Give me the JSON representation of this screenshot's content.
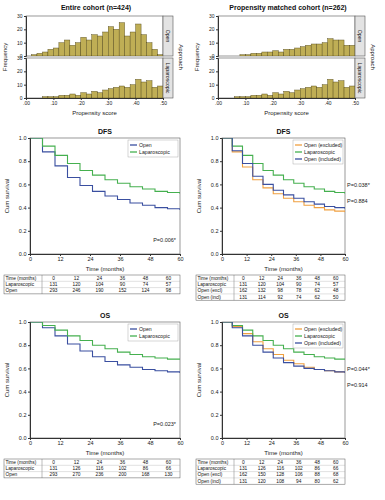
{
  "chart_data": [
    {
      "type": "histogram",
      "title": "Entire cohort (n=424)",
      "x_label": "Propensity score",
      "y_label": "Frequency",
      "facet_title": "Approach",
      "bins": [
        0,
        0.02,
        0.04,
        0.06,
        0.08,
        0.1,
        0.12,
        0.14,
        0.16,
        0.18,
        0.2,
        0.22,
        0.24,
        0.26,
        0.28,
        0.3,
        0.32,
        0.34,
        0.36,
        0.38,
        0.4,
        0.42,
        0.44,
        0.46,
        0.48,
        0.5
      ],
      "xlim": [
        0,
        0.5
      ],
      "xticks": [
        {
          "value": 0,
          "label": ".00"
        },
        {
          "value": 0.1,
          "label": ".10"
        },
        {
          "value": 0.2,
          "label": ".20"
        },
        {
          "value": 0.3,
          "label": ".30"
        },
        {
          "value": 0.4,
          "label": ".40"
        },
        {
          "value": 0.5,
          "label": ".50"
        }
      ],
      "ylim": [
        0,
        30
      ],
      "yticks": [
        0,
        10,
        20,
        30
      ],
      "color": "#bfae55",
      "series": [
        {
          "name": "Open",
          "values": [
            0,
            1,
            2,
            3,
            5,
            6,
            10,
            12,
            8,
            10,
            14,
            12,
            16,
            15,
            18,
            22,
            20,
            25,
            15,
            18,
            24,
            16,
            10,
            5,
            1
          ]
        },
        {
          "name": "Laparoscopic",
          "values": [
            0,
            0,
            0,
            1,
            1,
            1,
            2,
            2,
            3,
            2,
            4,
            3,
            5,
            4,
            6,
            7,
            8,
            9,
            8,
            10,
            14,
            12,
            13,
            8,
            9
          ]
        }
      ]
    },
    {
      "type": "histogram",
      "title": "Propensity matched cohort (n=262)",
      "x_label": "Propensity score",
      "y_label": "Frequency",
      "facet_title": "Approach",
      "bins": [
        0,
        0.02,
        0.04,
        0.06,
        0.08,
        0.1,
        0.12,
        0.14,
        0.16,
        0.18,
        0.2,
        0.22,
        0.24,
        0.26,
        0.28,
        0.3,
        0.32,
        0.34,
        0.36,
        0.38,
        0.4,
        0.42,
        0.44,
        0.46,
        0.48,
        0.5
      ],
      "xlim": [
        0,
        0.5
      ],
      "xticks": [
        {
          "value": 0,
          "label": ".00"
        },
        {
          "value": 0.1,
          "label": ".10"
        },
        {
          "value": 0.2,
          "label": ".20"
        },
        {
          "value": 0.3,
          "label": ".30"
        },
        {
          "value": 0.4,
          "label": ".40"
        },
        {
          "value": 0.5,
          "label": ".50"
        }
      ],
      "ylim": [
        0,
        30
      ],
      "yticks": [
        0,
        10,
        20,
        30
      ],
      "color": "#bfae55",
      "series": [
        {
          "name": "Open",
          "values": [
            0,
            0,
            0,
            0,
            1,
            1,
            2,
            2,
            3,
            3,
            4,
            3,
            5,
            5,
            6,
            7,
            8,
            9,
            9,
            10,
            13,
            12,
            12,
            8,
            8
          ]
        },
        {
          "name": "Laparoscopic",
          "values": [
            0,
            0,
            0,
            1,
            1,
            1,
            2,
            2,
            3,
            2,
            4,
            3,
            5,
            4,
            6,
            7,
            8,
            9,
            8,
            10,
            14,
            12,
            13,
            8,
            9
          ]
        }
      ]
    },
    {
      "type": "line",
      "title": "DFS",
      "x_label": "Time (months)",
      "y_label": "Cum survival",
      "line_style": "step",
      "legend": "upper right",
      "x": [
        0,
        5,
        10,
        15,
        20,
        25,
        30,
        35,
        40,
        45,
        50,
        55,
        60
      ],
      "xlim": [
        0,
        60
      ],
      "xticks": [
        0,
        12,
        24,
        36,
        48,
        60
      ],
      "ylim": [
        0,
        1
      ],
      "yticks": [
        {
          "value": 0,
          "label": "0.0"
        },
        {
          "value": 0.2,
          "label": "0.2"
        },
        {
          "value": 0.4,
          "label": "0.4"
        },
        {
          "value": 0.6,
          "label": "0.6"
        },
        {
          "value": 0.8,
          "label": "0.8"
        },
        {
          "value": 1,
          "label": "1.0"
        }
      ],
      "series": [
        {
          "name": "Open",
          "color": "#3a4fa0",
          "values": [
            1.0,
            0.88,
            0.76,
            0.66,
            0.59,
            0.54,
            0.5,
            0.47,
            0.44,
            0.42,
            0.4,
            0.39,
            0.38
          ]
        },
        {
          "name": "Laparoscopic",
          "color": "#45b04f",
          "values": [
            1.0,
            0.93,
            0.85,
            0.78,
            0.72,
            0.68,
            0.64,
            0.61,
            0.58,
            0.56,
            0.54,
            0.53,
            0.52
          ]
        }
      ],
      "annotations": [
        "P=0.006*"
      ],
      "risk_table": [
        [
          "Time (months)",
          0,
          12,
          24,
          36,
          48,
          60
        ],
        [
          "Laparoscopic",
          131,
          120,
          104,
          90,
          74,
          57
        ],
        [
          "Open",
          293,
          246,
          190,
          152,
          124,
          98
        ]
      ]
    },
    {
      "type": "line",
      "title": "DFS",
      "x_label": "Time (months)",
      "y_label": "Cum survival",
      "line_style": "step",
      "legend": "upper right",
      "x": [
        0,
        5,
        10,
        15,
        20,
        25,
        30,
        35,
        40,
        45,
        50,
        55,
        60
      ],
      "xlim": [
        0,
        60
      ],
      "xticks": [
        0,
        12,
        24,
        36,
        48,
        60
      ],
      "ylim": [
        0,
        1
      ],
      "yticks": [
        {
          "value": 0,
          "label": "0.0"
        },
        {
          "value": 0.2,
          "label": "0.2"
        },
        {
          "value": 0.4,
          "label": "0.4"
        },
        {
          "value": 0.6,
          "label": "0.6"
        },
        {
          "value": 0.8,
          "label": "0.8"
        },
        {
          "value": 1,
          "label": "1.0"
        }
      ],
      "series": [
        {
          "name": "Open (excluded)",
          "color": "#f0a040",
          "values": [
            1.0,
            0.88,
            0.75,
            0.64,
            0.57,
            0.52,
            0.48,
            0.45,
            0.42,
            0.4,
            0.38,
            0.37,
            0.36
          ]
        },
        {
          "name": "Laparoscopic",
          "color": "#45b04f",
          "values": [
            1.0,
            0.93,
            0.85,
            0.78,
            0.72,
            0.68,
            0.64,
            0.61,
            0.58,
            0.56,
            0.54,
            0.53,
            0.52
          ]
        },
        {
          "name": "Open (included)",
          "color": "#3a4fa0",
          "values": [
            1.0,
            0.89,
            0.78,
            0.67,
            0.6,
            0.55,
            0.51,
            0.48,
            0.45,
            0.43,
            0.41,
            0.4,
            0.39
          ]
        }
      ],
      "annotations": [
        "P=0.038*",
        "P=0.884"
      ],
      "risk_table": [
        [
          "Time (months)",
          0,
          12,
          24,
          36,
          48,
          60
        ],
        [
          "Laparoscopic",
          131,
          120,
          104,
          90,
          74,
          57
        ],
        [
          "Open (excl)",
          162,
          132,
          98,
          78,
          62,
          48
        ],
        [
          "Open (incl)",
          131,
          114,
          92,
          74,
          62,
          50
        ]
      ]
    },
    {
      "type": "line",
      "title": "OS",
      "x_label": "Time (months)",
      "y_label": "Cum survival",
      "line_style": "step",
      "legend": "upper right",
      "x": [
        0,
        5,
        10,
        15,
        20,
        25,
        30,
        35,
        40,
        45,
        50,
        55,
        60
      ],
      "xlim": [
        0,
        60
      ],
      "xticks": [
        0,
        12,
        24,
        36,
        48,
        60
      ],
      "ylim": [
        0,
        1
      ],
      "yticks": [
        {
          "value": 0,
          "label": "0.0"
        },
        {
          "value": 0.2,
          "label": "0.2"
        },
        {
          "value": 0.4,
          "label": "0.4"
        },
        {
          "value": 0.6,
          "label": "0.6"
        },
        {
          "value": 0.8,
          "label": "0.8"
        },
        {
          "value": 1,
          "label": "1.0"
        }
      ],
      "series": [
        {
          "name": "Open",
          "color": "#3a4fa0",
          "values": [
            1.0,
            0.95,
            0.88,
            0.81,
            0.75,
            0.7,
            0.66,
            0.63,
            0.61,
            0.59,
            0.58,
            0.57,
            0.56
          ]
        },
        {
          "name": "Laparoscopic",
          "color": "#45b04f",
          "values": [
            1.0,
            0.97,
            0.93,
            0.88,
            0.84,
            0.8,
            0.77,
            0.74,
            0.72,
            0.7,
            0.69,
            0.68,
            0.68
          ]
        }
      ],
      "annotations": [
        "P=0.023*"
      ],
      "risk_table": [
        [
          "Time (months)",
          0,
          12,
          24,
          36,
          48,
          60
        ],
        [
          "Laparoscopic",
          131,
          126,
          116,
          102,
          86,
          66
        ],
        [
          "Open",
          293,
          270,
          236,
          200,
          168,
          130
        ]
      ]
    },
    {
      "type": "line",
      "title": "OS",
      "x_label": "Time (months)",
      "y_label": "Cum survival",
      "line_style": "step",
      "legend": "upper right",
      "x": [
        0,
        5,
        10,
        15,
        20,
        25,
        30,
        35,
        40,
        45,
        50,
        55,
        60
      ],
      "xlim": [
        0,
        60
      ],
      "xticks": [
        0,
        12,
        24,
        36,
        48,
        60
      ],
      "ylim": [
        0,
        1
      ],
      "yticks": [
        {
          "value": 0,
          "label": "0.0"
        },
        {
          "value": 0.2,
          "label": "0.2"
        },
        {
          "value": 0.4,
          "label": "0.4"
        },
        {
          "value": 0.6,
          "label": "0.6"
        },
        {
          "value": 0.8,
          "label": "0.8"
        },
        {
          "value": 1,
          "label": "1.0"
        }
      ],
      "series": [
        {
          "name": "Open (excluded)",
          "color": "#f0a040",
          "values": [
            1.0,
            0.96,
            0.9,
            0.83,
            0.77,
            0.72,
            0.67,
            0.64,
            0.61,
            0.59,
            0.58,
            0.57,
            0.57
          ]
        },
        {
          "name": "Laparoscopic",
          "color": "#45b04f",
          "values": [
            1.0,
            0.97,
            0.93,
            0.88,
            0.84,
            0.8,
            0.77,
            0.74,
            0.72,
            0.7,
            0.69,
            0.68,
            0.68
          ]
        },
        {
          "name": "Open (included)",
          "color": "#3a4fa0",
          "values": [
            1.0,
            0.95,
            0.88,
            0.8,
            0.74,
            0.69,
            0.65,
            0.62,
            0.6,
            0.59,
            0.58,
            0.57,
            0.56
          ]
        }
      ],
      "annotations": [
        "P=0.044*",
        "P=0.914"
      ],
      "risk_table": [
        [
          "Time (months)",
          0,
          12,
          24,
          36,
          48,
          60
        ],
        [
          "Laparoscopic",
          131,
          126,
          116,
          102,
          86,
          66
        ],
        [
          "Open (excl)",
          162,
          150,
          128,
          106,
          88,
          68
        ],
        [
          "Open (incl)",
          131,
          120,
          108,
          94,
          80,
          62
        ]
      ]
    }
  ]
}
